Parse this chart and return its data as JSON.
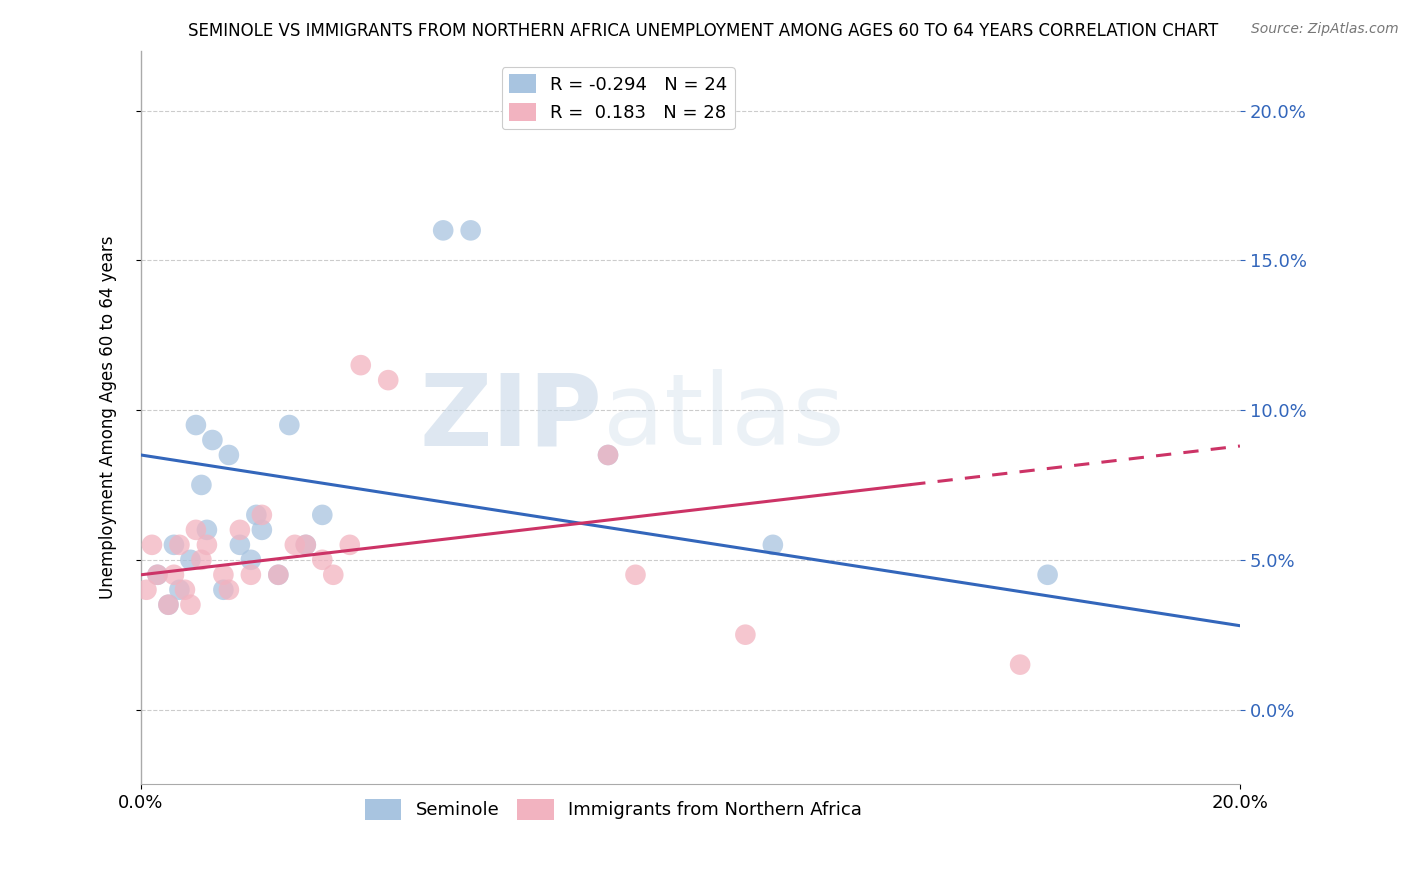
{
  "title": "SEMINOLE VS IMMIGRANTS FROM NORTHERN AFRICA UNEMPLOYMENT AMONG AGES 60 TO 64 YEARS CORRELATION CHART",
  "source_text": "Source: ZipAtlas.com",
  "ylabel": "Unemployment Among Ages 60 to 64 years",
  "xlim": [
    0.0,
    20.0
  ],
  "ylim": [
    -2.5,
    22.0
  ],
  "yticks": [
    0.0,
    5.0,
    10.0,
    15.0,
    20.0
  ],
  "xtick_positions": [
    0.0,
    20.0
  ],
  "xtick_labels": [
    "0.0%",
    "20.0%"
  ],
  "watermark_zip": "ZIP",
  "watermark_atlas": "atlas",
  "blue_color": "#a8c4e0",
  "pink_color": "#f2b3c0",
  "blue_line_color": "#3366bb",
  "pink_line_color": "#cc3366",
  "legend_blue_label": "R = -0.294   N = 24",
  "legend_pink_label": "R =  0.183   N = 28",
  "seminole_label": "Seminole",
  "immigrants_label": "Immigrants from Northern Africa",
  "blue_x": [
    0.3,
    0.5,
    0.6,
    0.7,
    0.9,
    1.0,
    1.1,
    1.2,
    1.3,
    1.5,
    1.6,
    1.8,
    2.0,
    2.1,
    2.2,
    2.5,
    2.7,
    3.0,
    3.3,
    5.5,
    6.0,
    8.5,
    11.5,
    16.5
  ],
  "blue_y": [
    4.5,
    3.5,
    5.5,
    4.0,
    5.0,
    9.5,
    7.5,
    6.0,
    9.0,
    4.0,
    8.5,
    5.5,
    5.0,
    6.5,
    6.0,
    4.5,
    9.5,
    5.5,
    6.5,
    16.0,
    16.0,
    8.5,
    5.5,
    4.5
  ],
  "pink_x": [
    0.1,
    0.2,
    0.3,
    0.5,
    0.6,
    0.7,
    0.8,
    0.9,
    1.0,
    1.1,
    1.2,
    1.5,
    1.6,
    1.8,
    2.0,
    2.2,
    2.5,
    2.8,
    3.0,
    3.3,
    3.8,
    4.0,
    4.5,
    8.5,
    9.0,
    3.5,
    11.0,
    16.0
  ],
  "pink_y": [
    4.0,
    5.5,
    4.5,
    3.5,
    4.5,
    5.5,
    4.0,
    3.5,
    6.0,
    5.0,
    5.5,
    4.5,
    4.0,
    6.0,
    4.5,
    6.5,
    4.5,
    5.5,
    5.5,
    5.0,
    5.5,
    11.5,
    11.0,
    8.5,
    4.5,
    4.5,
    2.5,
    1.5
  ],
  "blue_trend_x": [
    0.0,
    20.0
  ],
  "blue_trend_y_start": 8.5,
  "blue_trend_y_end": 2.8,
  "pink_trend_x": [
    0.0,
    20.0
  ],
  "pink_trend_y_start": 4.5,
  "pink_trend_y_end": 8.8,
  "pink_dashed_start_x": 14.0
}
